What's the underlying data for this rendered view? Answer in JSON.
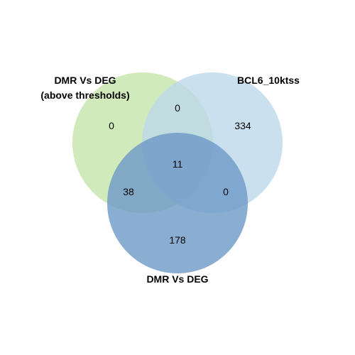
{
  "sets": [
    {
      "id": "a",
      "label_lines": [
        "DMR Vs DEG",
        "(above thresholds)"
      ],
      "color": "#c9e6b0"
    },
    {
      "id": "b",
      "label_lines": [
        "BCL6_10ktss"
      ],
      "color": "#bcd7ea"
    },
    {
      "id": "c",
      "label_lines": [
        "DMR Vs DEG"
      ],
      "color": "#6d98c7"
    }
  ],
  "regions": {
    "a_only": "0",
    "b_only": "334",
    "c_only": "178",
    "ab_only": "0",
    "ac_only": "38",
    "bc_only": "0",
    "abc": "11"
  }
}
